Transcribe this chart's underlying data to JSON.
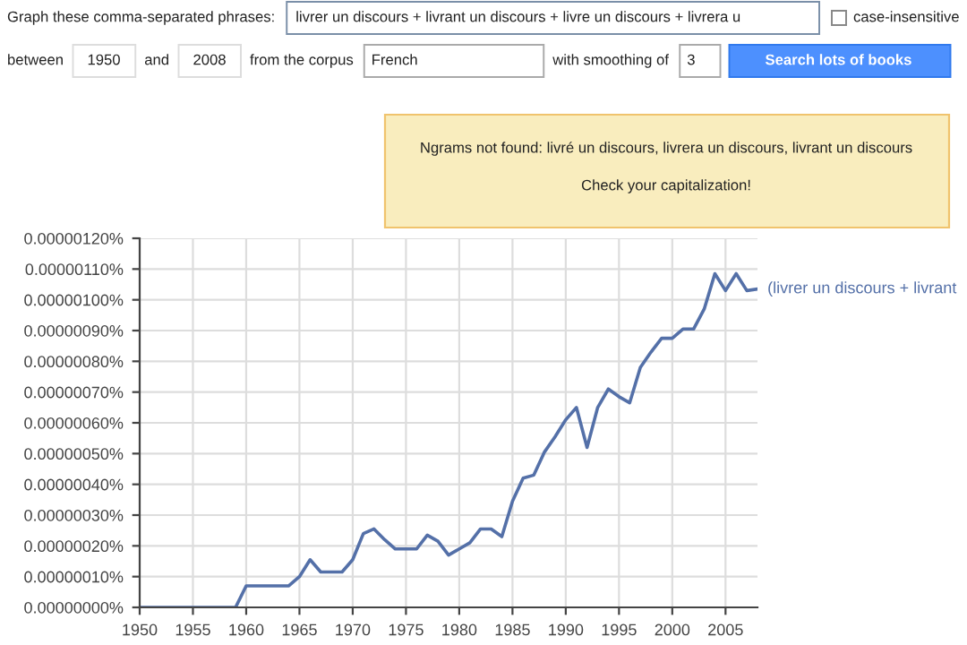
{
  "chart_data": {
    "type": "line",
    "x": [
      1950,
      1951,
      1952,
      1953,
      1954,
      1955,
      1956,
      1957,
      1958,
      1959,
      1960,
      1961,
      1962,
      1963,
      1964,
      1965,
      1966,
      1967,
      1968,
      1969,
      1970,
      1971,
      1972,
      1973,
      1974,
      1975,
      1976,
      1977,
      1978,
      1979,
      1980,
      1981,
      1982,
      1983,
      1984,
      1985,
      1986,
      1987,
      1988,
      1989,
      1990,
      1991,
      1992,
      1993,
      1994,
      1995,
      1996,
      1997,
      1998,
      1999,
      2000,
      2001,
      2002,
      2003,
      2004,
      2005,
      2006,
      2007,
      2008
    ],
    "series": [
      {
        "name": "(livrer un discours + livrant",
        "color": "#5470a8",
        "values": [
          0,
          0,
          0,
          0,
          0,
          0,
          0,
          0,
          0,
          0,
          7e-08,
          7e-08,
          7e-08,
          7e-08,
          7e-08,
          1e-07,
          1.55e-07,
          1.15e-07,
          1.15e-07,
          1.15e-07,
          1.55e-07,
          2.4e-07,
          2.55e-07,
          2.2e-07,
          1.9e-07,
          1.9e-07,
          1.9e-07,
          2.35e-07,
          2.15e-07,
          1.7e-07,
          1.9e-07,
          2.1e-07,
          2.55e-07,
          2.55e-07,
          2.3e-07,
          3.45e-07,
          4.2e-07,
          4.3e-07,
          5.05e-07,
          5.55e-07,
          6.1e-07,
          6.5e-07,
          5.2e-07,
          6.5e-07,
          7.1e-07,
          6.85e-07,
          6.65e-07,
          7.8e-07,
          8.3e-07,
          8.75e-07,
          8.75e-07,
          9.05e-07,
          9.05e-07,
          9.7e-07,
          1.085e-06,
          1.03e-06,
          1.085e-06,
          1.03e-06,
          1.035e-06
        ]
      }
    ],
    "xlim": [
      1950,
      2008
    ],
    "xticks": [
      1950,
      1955,
      1960,
      1965,
      1970,
      1975,
      1980,
      1985,
      1990,
      1995,
      2000,
      2005
    ],
    "ylim": [
      0,
      1.2e-06
    ],
    "yticks": [
      {
        "value": 0,
        "label": "0.00000000%"
      },
      {
        "value": 1e-07,
        "label": "0.00000010%"
      },
      {
        "value": 2e-07,
        "label": "0.00000020%"
      },
      {
        "value": 3e-07,
        "label": "0.00000030%"
      },
      {
        "value": 4e-07,
        "label": "0.00000040%"
      },
      {
        "value": 5e-07,
        "label": "0.00000050%"
      },
      {
        "value": 6e-07,
        "label": "0.00000060%"
      },
      {
        "value": 7e-07,
        "label": "0.00000070%"
      },
      {
        "value": 8e-07,
        "label": "0.00000080%"
      },
      {
        "value": 9e-07,
        "label": "0.00000090%"
      },
      {
        "value": 1e-06,
        "label": "0.00000100%"
      },
      {
        "value": 1.1e-06,
        "label": "0.00000110%"
      },
      {
        "value": 1.2e-06,
        "label": "0.00000120%"
      }
    ],
    "grid": true,
    "legend": false,
    "marker": "none",
    "line_style": "solid",
    "annotations": [
      "Graph these comma-separated phrases:",
      "livrer un discours + livrant un discours + livre un discours + livrera u",
      "case-insensitive",
      "between",
      "1950",
      "and",
      "2008",
      "from the corpus",
      "French",
      "with smoothing of",
      "3",
      "Search lots of books",
      "Ngrams not found: livré un discours, livrera un discours, livrant un discours",
      "Check your capitalization!"
    ]
  }
}
